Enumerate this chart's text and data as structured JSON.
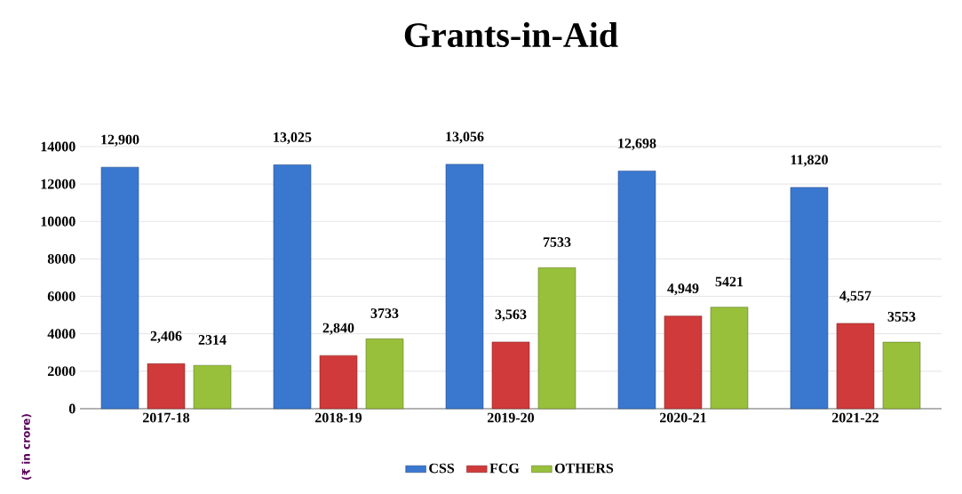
{
  "chart_data": {
    "type": "bar",
    "title": "Grants-in-Aid",
    "ylabel": "(₹ in crore)",
    "categories": [
      "2017-18",
      "2018-19",
      "2019-20",
      "2020-21",
      "2021-22"
    ],
    "series": [
      {
        "name": "CSS",
        "color": "#3a78d0",
        "values": [
          12900,
          13025,
          13056,
          12698,
          11820
        ],
        "value_labels": [
          "12,900",
          "13,025",
          "13,056",
          "12,698",
          "11,820"
        ]
      },
      {
        "name": "FCG",
        "color": "#d03a3a",
        "values": [
          2406,
          2840,
          3563,
          4949,
          4557
        ],
        "value_labels": [
          "2,406",
          "2,840",
          "3,563",
          "4,949",
          "4,557"
        ]
      },
      {
        "name": "OTHERS",
        "color": "#98c03a",
        "values": [
          2314,
          3733,
          7533,
          5421,
          3553
        ],
        "value_labels": [
          "2314",
          "3733",
          "7533",
          "5421",
          "3553"
        ]
      }
    ],
    "ylim": [
      0,
      14000
    ],
    "yticks": [
      0,
      2000,
      4000,
      6000,
      8000,
      10000,
      12000,
      14000
    ],
    "grid": "y",
    "legend": "bottom"
  }
}
